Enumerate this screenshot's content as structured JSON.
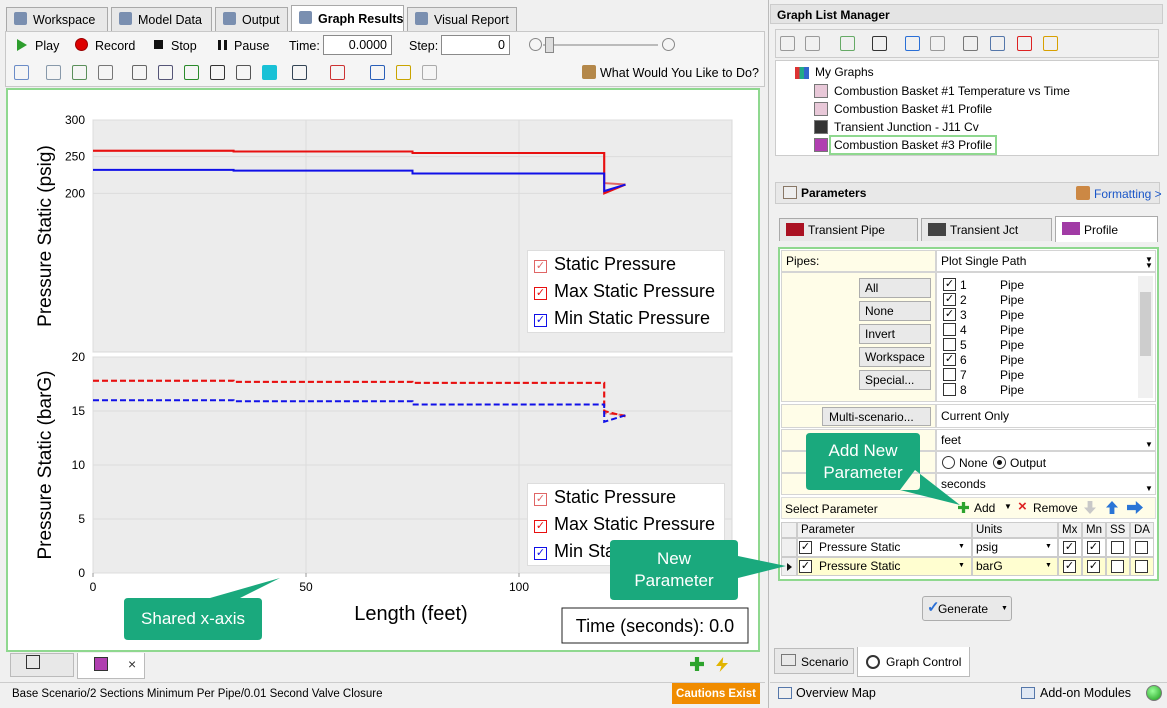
{
  "tabs": [
    "Workspace",
    "Model Data",
    "Output",
    "Graph Results",
    "Visual Report"
  ],
  "active_tab": 3,
  "toolbar": {
    "play": "Play",
    "record": "Record",
    "stop": "Stop",
    "pause": "Pause",
    "time_label": "Time:",
    "time_value": "0.0000",
    "step_label": "Step:",
    "step_value": "0",
    "help": "What Would You Like to Do?"
  },
  "graph": {
    "top": {
      "type": "line",
      "ylabel": "Pressure Static (psig)",
      "xlim": [
        0,
        150
      ],
      "ylim": [
        0,
        300
      ],
      "yticks": [
        200,
        250,
        300
      ],
      "grid": true,
      "x": [
        0,
        33,
        33,
        75,
        75,
        120,
        120,
        125
      ],
      "series": [
        {
          "name": "Static Pressure",
          "color": "#e06666",
          "dash": false,
          "values": [
            258,
            258,
            257,
            257,
            255,
            255,
            214,
            212
          ]
        },
        {
          "name": "Max Static Pressure",
          "color": "#e81010",
          "dash": false,
          "values": [
            258,
            258,
            257,
            257,
            255,
            255,
            200,
            212
          ]
        },
        {
          "name": "Min Static Pressure",
          "color": "#1010e8",
          "dash": false,
          "values": [
            232,
            232,
            231,
            231,
            227,
            227,
            203,
            212
          ]
        }
      ]
    },
    "bottom": {
      "type": "line",
      "ylabel": "Pressure Static (barG)",
      "xlabel": "Length (feet)",
      "xlim": [
        0,
        150
      ],
      "ylim": [
        0,
        20
      ],
      "yticks": [
        0,
        5,
        10,
        15,
        20
      ],
      "xticks": [
        0,
        50,
        100
      ],
      "grid": true,
      "x": [
        0,
        33,
        33,
        75,
        75,
        120,
        120,
        125
      ],
      "series": [
        {
          "name": "Static Pressure",
          "color": "#e06666",
          "dash": true,
          "values": [
            17.8,
            17.8,
            17.7,
            17.7,
            17.6,
            17.6,
            14.8,
            14.6
          ]
        },
        {
          "name": "Max Static Pressure",
          "color": "#e81010",
          "dash": true,
          "values": [
            17.8,
            17.8,
            17.7,
            17.7,
            17.6,
            17.6,
            15.0,
            14.5
          ]
        },
        {
          "name": "Min Static Pressure",
          "color": "#1010e8",
          "dash": true,
          "values": [
            16.0,
            16.0,
            15.9,
            15.9,
            15.6,
            15.6,
            14.0,
            14.6
          ]
        }
      ]
    },
    "time_box": "Time (seconds): 0.0"
  },
  "annotations": {
    "shared_x": "Shared x-axis",
    "add_new": "Add New Parameter",
    "new_param": "New Parameter"
  },
  "status": {
    "scenario": "Base Scenario/2 Sections Minimum Per Pipe/0.01 Second Valve Closure",
    "cautions": "Cautions Exist"
  },
  "right": {
    "title": "Graph List Manager",
    "tree": {
      "root": "My Graphs",
      "items": [
        "Combustion Basket #1 Temperature vs Time",
        "Combustion Basket #1 Profile",
        "Transient Junction - J11 Cv",
        "Combustion Basket #3 Profile"
      ],
      "selected": 3
    },
    "parameters": "Parameters",
    "formatting": "Formatting >",
    "tabs": [
      "Transient Pipe",
      "Transient Jct",
      "Profile"
    ],
    "active_tab": 2,
    "pipes_label": "Pipes:",
    "pipes_mode": "Plot Single Path",
    "buttons": [
      "All",
      "None",
      "Invert",
      "Workspace",
      "Special..."
    ],
    "pipes": [
      {
        "id": "1",
        "type": "Pipe",
        "checked": true
      },
      {
        "id": "2",
        "type": "Pipe",
        "checked": true
      },
      {
        "id": "3",
        "type": "Pipe",
        "checked": true
      },
      {
        "id": "4",
        "type": "Pipe",
        "checked": false
      },
      {
        "id": "5",
        "type": "Pipe",
        "checked": false
      },
      {
        "id": "6",
        "type": "Pipe",
        "checked": true
      },
      {
        "id": "7",
        "type": "Pipe",
        "checked": false
      },
      {
        "id": "8",
        "type": "Pipe",
        "checked": false
      }
    ],
    "multi": "Multi-scenario...",
    "multi_value": "Current Only",
    "length_units": "feet",
    "radio": [
      "None",
      "Output"
    ],
    "radio_selected": 1,
    "time_units": "seconds",
    "select_parameter": "Select Parameter",
    "add": "Add",
    "remove": "Remove",
    "table": {
      "header": [
        "Parameter",
        "Units",
        "Mx",
        "Mn",
        "SS",
        "DA"
      ],
      "rows": [
        {
          "parameter": "Pressure Static",
          "units": "psig",
          "checks": [
            true,
            true,
            false,
            false
          ]
        },
        {
          "parameter": "Pressure Static",
          "units": "barG",
          "checks": [
            true,
            true,
            false,
            false
          ]
        }
      ]
    },
    "generate": "Generate",
    "bottom_tabs": [
      "Scenario",
      "Graph Control"
    ],
    "overview": "Overview Map",
    "addon": "Add-on Modules"
  }
}
